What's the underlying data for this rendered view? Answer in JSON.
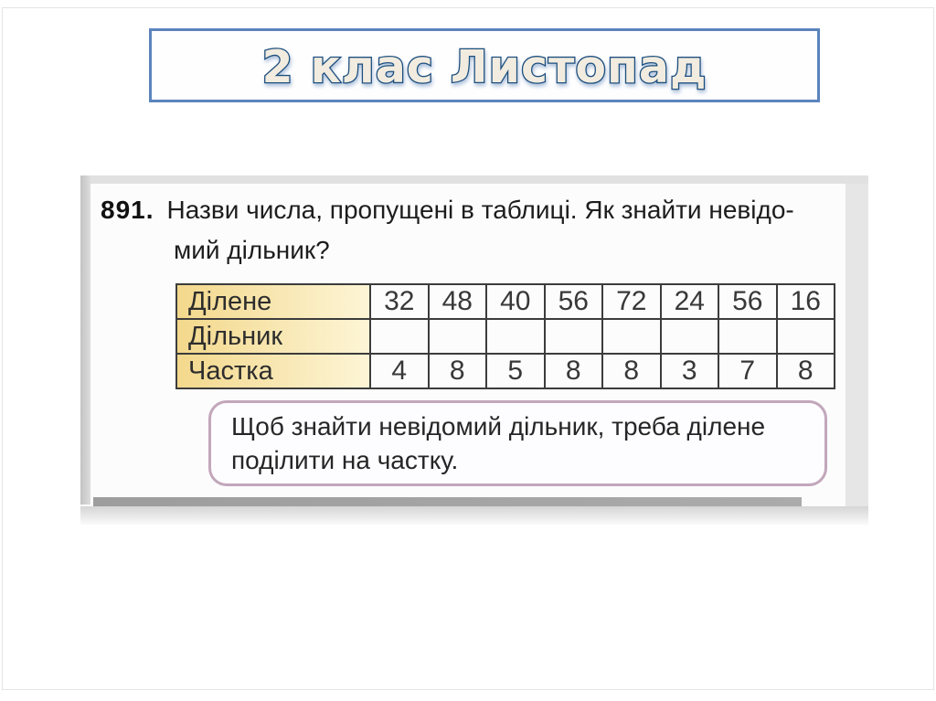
{
  "slide": {
    "title": "2 клас Листопад"
  },
  "problem": {
    "number": "891.",
    "line1": "Назви числа, пропущені в таблиці. Як знайти невідо-",
    "line2": "мий дільник?"
  },
  "table": {
    "rows": [
      {
        "label": "Ділене",
        "values": [
          "32",
          "48",
          "40",
          "56",
          "72",
          "24",
          "56",
          "16"
        ]
      },
      {
        "label": "Дільник",
        "values": [
          "",
          "",
          "",
          "",
          "",
          "",
          "",
          ""
        ]
      },
      {
        "label": "Частка",
        "values": [
          "4",
          "8",
          "5",
          "8",
          "8",
          "3",
          "7",
          "8"
        ]
      }
    ]
  },
  "note": {
    "line1": "Щоб знайти невідомий дільник, треба ділене",
    "line2": "поділити на частку."
  },
  "colors": {
    "title_border": "#5b84bd",
    "title_stroke": "#1d4e7e",
    "title_fill": "#f1ecdf",
    "label_gradient_start": "#f3d88c",
    "label_gradient_end": "#fdf5d6",
    "table_border": "#3c3c3c",
    "note_border": "#c2a7bb",
    "scan_bar": "#ababab"
  }
}
